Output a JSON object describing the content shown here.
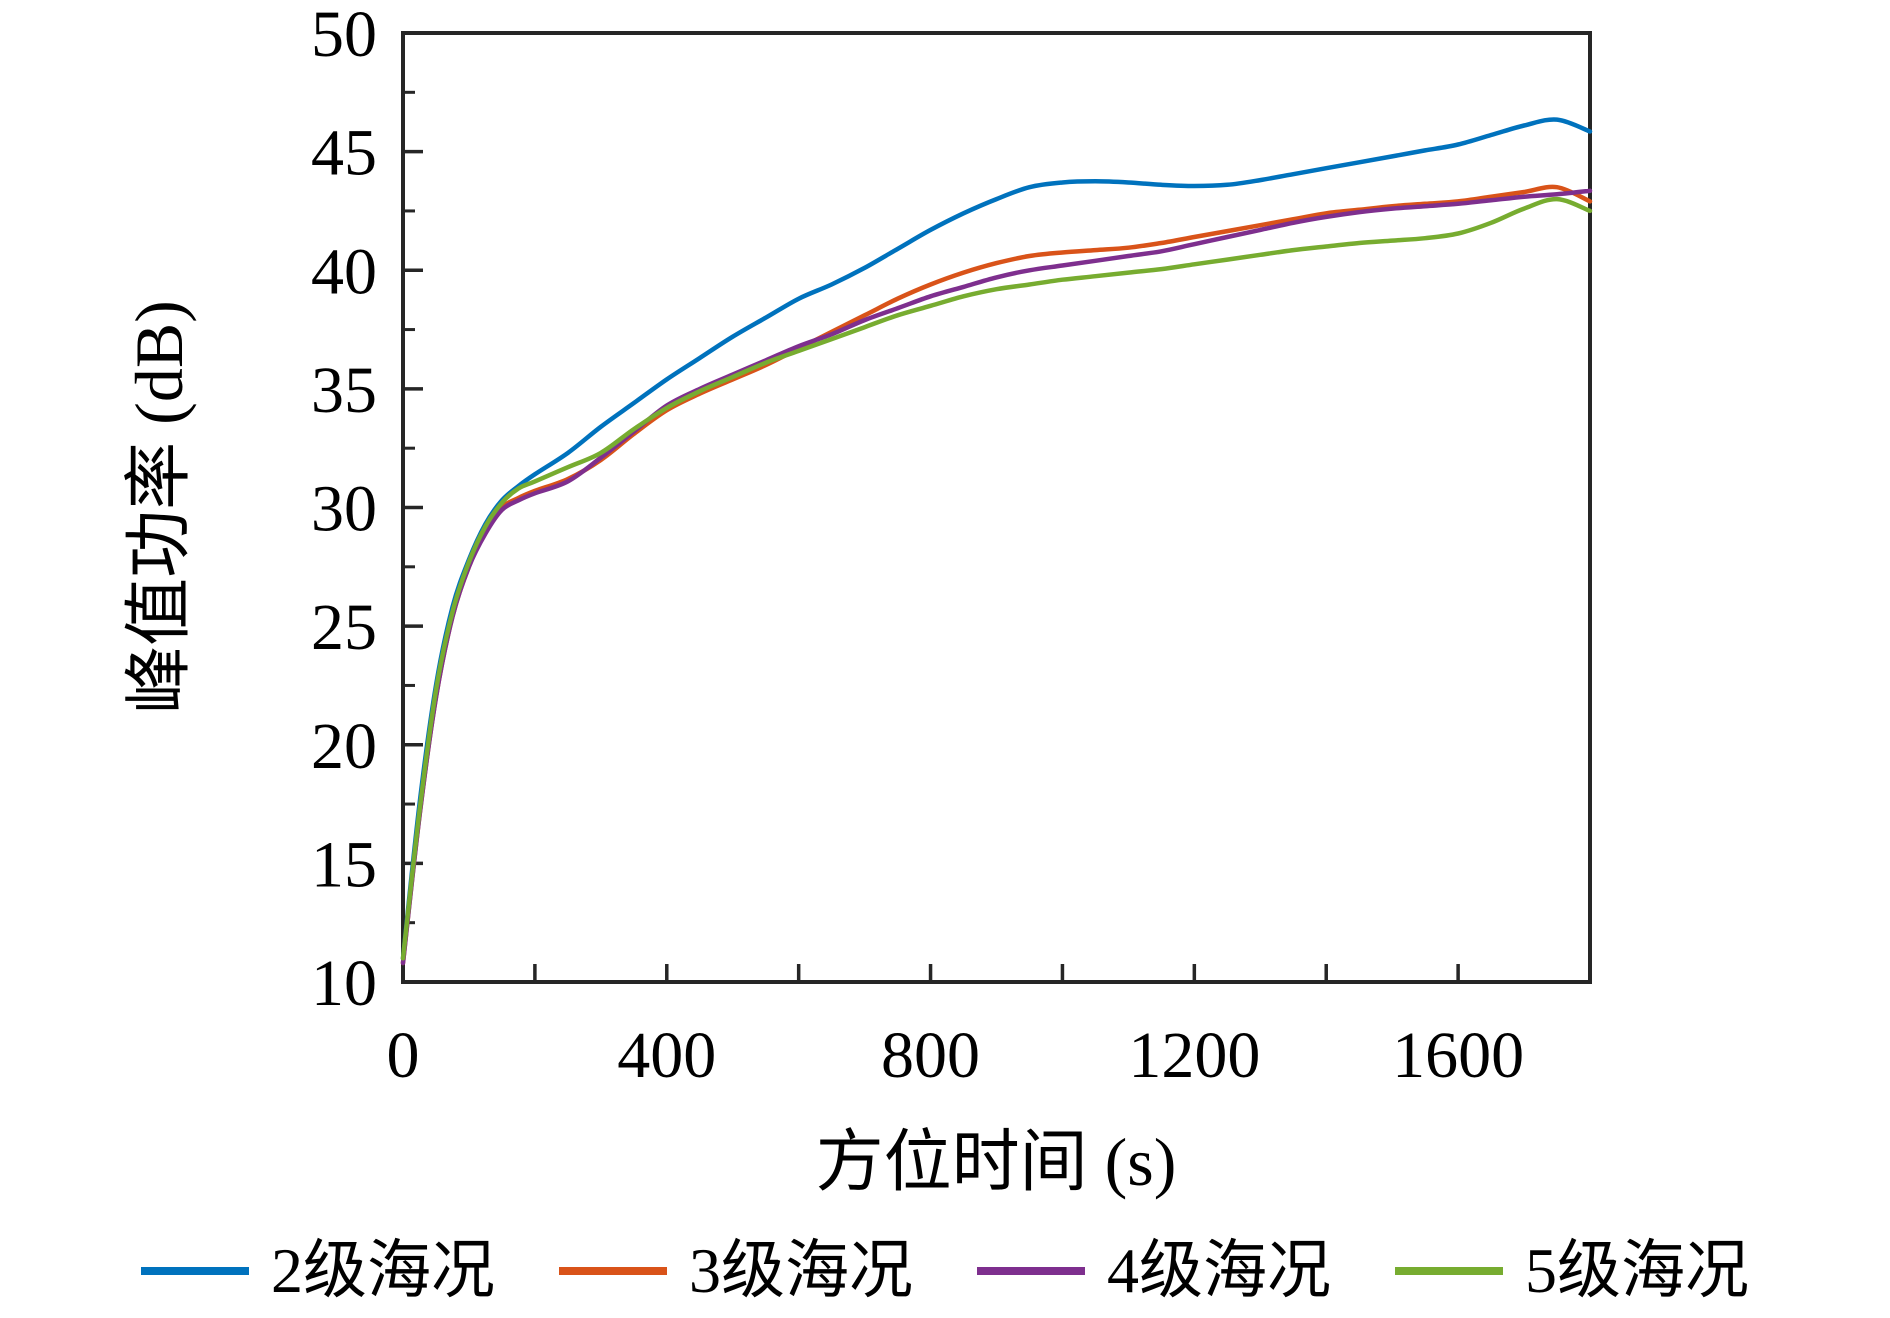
{
  "figure": {
    "background": "#ffffff",
    "axis_color": "#262626",
    "text_color": "#000000"
  },
  "chart_data": {
    "type": "line",
    "title": "",
    "xlabel": "方位时间 (s)",
    "ylabel": "峰值功率 (dB)",
    "xlim": [
      0,
      1800
    ],
    "ylim": [
      10,
      50
    ],
    "x_major_ticks": [
      0,
      400,
      800,
      1200,
      1600
    ],
    "x_minor_ticks": [
      200,
      600,
      1000,
      1400,
      1800
    ],
    "y_major_ticks": [
      10,
      15,
      20,
      25,
      30,
      35,
      40,
      45,
      50
    ],
    "y_minor_ticks": [
      12.5,
      17.5,
      22.5,
      27.5,
      32.5,
      37.5,
      42.5,
      47.5
    ],
    "grid": false,
    "legend_position": "bottom",
    "x": [
      0,
      25,
      50,
      75,
      100,
      125,
      150,
      175,
      200,
      250,
      300,
      350,
      400,
      450,
      500,
      550,
      600,
      650,
      700,
      750,
      800,
      850,
      900,
      950,
      1000,
      1050,
      1100,
      1150,
      1200,
      1250,
      1300,
      1350,
      1400,
      1450,
      1500,
      1550,
      1600,
      1650,
      1700,
      1750,
      1800
    ],
    "series": [
      {
        "name": "2级海况",
        "color": "#0072BD",
        "values": [
          11,
          17.5,
          22.5,
          25.8,
          27.8,
          29.3,
          30.3,
          30.9,
          31.4,
          32.3,
          33.4,
          34.4,
          35.4,
          36.3,
          37.2,
          38.0,
          38.8,
          39.4,
          40.1,
          40.9,
          41.7,
          42.4,
          43.0,
          43.5,
          43.7,
          43.75,
          43.7,
          43.6,
          43.55,
          43.6,
          43.8,
          44.05,
          44.3,
          44.55,
          44.8,
          45.05,
          45.3,
          45.7,
          46.1,
          46.35,
          45.85
        ]
      },
      {
        "name": "3级海况",
        "color": "#D95319",
        "values": [
          10.8,
          17.0,
          22.0,
          25.4,
          27.5,
          29.0,
          30.0,
          30.4,
          30.7,
          31.2,
          32.0,
          33.1,
          34.1,
          34.8,
          35.4,
          36.0,
          36.7,
          37.4,
          38.1,
          38.8,
          39.4,
          39.9,
          40.3,
          40.6,
          40.75,
          40.85,
          40.95,
          41.15,
          41.4,
          41.65,
          41.9,
          42.15,
          42.4,
          42.55,
          42.7,
          42.8,
          42.9,
          43.1,
          43.3,
          43.5,
          42.9
        ]
      },
      {
        "name": "4级海况",
        "color": "#7E2F8E",
        "values": [
          10.8,
          17.0,
          22.0,
          25.4,
          27.5,
          28.9,
          29.9,
          30.3,
          30.6,
          31.1,
          32.1,
          33.2,
          34.3,
          35.0,
          35.6,
          36.2,
          36.8,
          37.3,
          37.9,
          38.4,
          38.9,
          39.3,
          39.7,
          40.0,
          40.2,
          40.4,
          40.6,
          40.8,
          41.1,
          41.4,
          41.7,
          42.0,
          42.25,
          42.45,
          42.6,
          42.7,
          42.8,
          42.95,
          43.1,
          43.2,
          43.35
        ]
      },
      {
        "name": "5级海况",
        "color": "#77AC30",
        "values": [
          11.0,
          17.2,
          22.3,
          25.6,
          27.7,
          29.2,
          30.2,
          30.8,
          31.1,
          31.7,
          32.3,
          33.3,
          34.2,
          34.9,
          35.5,
          36.1,
          36.6,
          37.1,
          37.6,
          38.1,
          38.5,
          38.9,
          39.2,
          39.4,
          39.6,
          39.75,
          39.9,
          40.05,
          40.25,
          40.45,
          40.65,
          40.85,
          41.0,
          41.15,
          41.25,
          41.35,
          41.55,
          42.0,
          42.6,
          43.0,
          42.5
        ]
      }
    ]
  }
}
